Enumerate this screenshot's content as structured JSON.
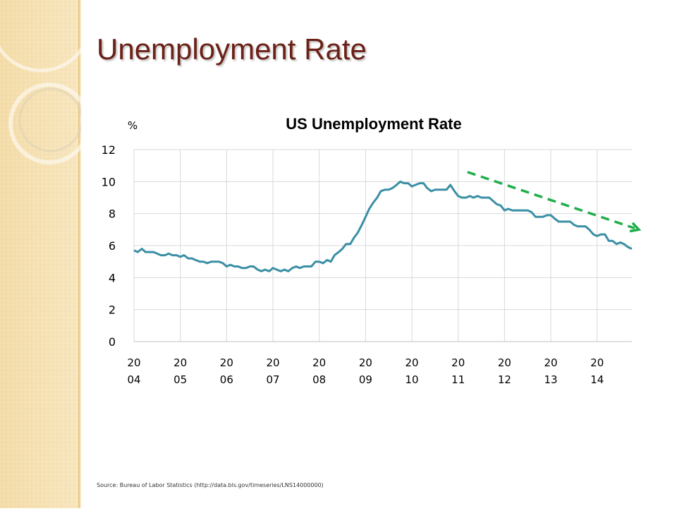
{
  "slide": {
    "title": "Unemployment Rate",
    "source": "Source: Bureau of Labor Statistics (http://data.bls.gov/timeseries/LNS14000000)"
  },
  "colors": {
    "title": "#6b2117",
    "line": "#3a8fa5",
    "trend": "#1fae4a",
    "grid": "#d9d9d9",
    "panel": "#f6e3b6"
  },
  "chart_data": {
    "type": "line",
    "title": "US Unemployment Rate",
    "ylabel": "%",
    "xlabel": "",
    "ylim": [
      0,
      12
    ],
    "y_ticks": [
      0,
      2,
      4,
      6,
      8,
      10,
      12
    ],
    "grid": "vertical and horizontal",
    "x_ticks": [
      {
        "year": 2004,
        "line1": "20",
        "line2": "04"
      },
      {
        "year": 2005,
        "line1": "20",
        "line2": "05"
      },
      {
        "year": 2006,
        "line1": "20",
        "line2": "06"
      },
      {
        "year": 2007,
        "line1": "20",
        "line2": "07"
      },
      {
        "year": 2008,
        "line1": "20",
        "line2": "08"
      },
      {
        "year": 2009,
        "line1": "20",
        "line2": "09"
      },
      {
        "year": 2010,
        "line1": "20",
        "line2": "10"
      },
      {
        "year": 2011,
        "line1": "20",
        "line2": "11"
      },
      {
        "year": 2012,
        "line1": "20",
        "line2": "12"
      },
      {
        "year": 2013,
        "line1": "20",
        "line2": "13"
      },
      {
        "year": 2014,
        "line1": "20",
        "line2": "14"
      }
    ],
    "x_range": [
      2004.0,
      2014.75
    ],
    "series": [
      {
        "values": [
          [
            2004.0,
            5.7
          ],
          [
            2004.08,
            5.6
          ],
          [
            2004.17,
            5.8
          ],
          [
            2004.25,
            5.6
          ],
          [
            2004.33,
            5.6
          ],
          [
            2004.42,
            5.6
          ],
          [
            2004.5,
            5.5
          ],
          [
            2004.58,
            5.4
          ],
          [
            2004.67,
            5.4
          ],
          [
            2004.75,
            5.5
          ],
          [
            2004.83,
            5.4
          ],
          [
            2004.92,
            5.4
          ],
          [
            2005.0,
            5.3
          ],
          [
            2005.08,
            5.4
          ],
          [
            2005.17,
            5.2
          ],
          [
            2005.25,
            5.2
          ],
          [
            2005.33,
            5.1
          ],
          [
            2005.42,
            5.0
          ],
          [
            2005.5,
            5.0
          ],
          [
            2005.58,
            4.9
          ],
          [
            2005.67,
            5.0
          ],
          [
            2005.75,
            5.0
          ],
          [
            2005.83,
            5.0
          ],
          [
            2005.92,
            4.9
          ],
          [
            2006.0,
            4.7
          ],
          [
            2006.08,
            4.8
          ],
          [
            2006.17,
            4.7
          ],
          [
            2006.25,
            4.7
          ],
          [
            2006.33,
            4.6
          ],
          [
            2006.42,
            4.6
          ],
          [
            2006.5,
            4.7
          ],
          [
            2006.58,
            4.7
          ],
          [
            2006.67,
            4.5
          ],
          [
            2006.75,
            4.4
          ],
          [
            2006.83,
            4.5
          ],
          [
            2006.92,
            4.4
          ],
          [
            2007.0,
            4.6
          ],
          [
            2007.08,
            4.5
          ],
          [
            2007.17,
            4.4
          ],
          [
            2007.25,
            4.5
          ],
          [
            2007.33,
            4.4
          ],
          [
            2007.42,
            4.6
          ],
          [
            2007.5,
            4.7
          ],
          [
            2007.58,
            4.6
          ],
          [
            2007.67,
            4.7
          ],
          [
            2007.75,
            4.7
          ],
          [
            2007.83,
            4.7
          ],
          [
            2007.92,
            5.0
          ],
          [
            2008.0,
            5.0
          ],
          [
            2008.08,
            4.9
          ],
          [
            2008.17,
            5.1
          ],
          [
            2008.25,
            5.0
          ],
          [
            2008.33,
            5.4
          ],
          [
            2008.42,
            5.6
          ],
          [
            2008.5,
            5.8
          ],
          [
            2008.58,
            6.1
          ],
          [
            2008.67,
            6.1
          ],
          [
            2008.75,
            6.5
          ],
          [
            2008.83,
            6.8
          ],
          [
            2008.92,
            7.3
          ],
          [
            2009.0,
            7.8
          ],
          [
            2009.08,
            8.3
          ],
          [
            2009.17,
            8.7
          ],
          [
            2009.25,
            9.0
          ],
          [
            2009.33,
            9.4
          ],
          [
            2009.42,
            9.5
          ],
          [
            2009.5,
            9.5
          ],
          [
            2009.58,
            9.6
          ],
          [
            2009.67,
            9.8
          ],
          [
            2009.75,
            10.0
          ],
          [
            2009.83,
            9.9
          ],
          [
            2009.92,
            9.9
          ],
          [
            2010.0,
            9.7
          ],
          [
            2010.08,
            9.8
          ],
          [
            2010.17,
            9.9
          ],
          [
            2010.25,
            9.9
          ],
          [
            2010.33,
            9.6
          ],
          [
            2010.42,
            9.4
          ],
          [
            2010.5,
            9.5
          ],
          [
            2010.58,
            9.5
          ],
          [
            2010.67,
            9.5
          ],
          [
            2010.75,
            9.5
          ],
          [
            2010.83,
            9.8
          ],
          [
            2010.92,
            9.4
          ],
          [
            2011.0,
            9.1
          ],
          [
            2011.08,
            9.0
          ],
          [
            2011.17,
            9.0
          ],
          [
            2011.25,
            9.1
          ],
          [
            2011.33,
            9.0
          ],
          [
            2011.42,
            9.1
          ],
          [
            2011.5,
            9.0
          ],
          [
            2011.58,
            9.0
          ],
          [
            2011.67,
            9.0
          ],
          [
            2011.75,
            8.8
          ],
          [
            2011.83,
            8.6
          ],
          [
            2011.92,
            8.5
          ],
          [
            2012.0,
            8.2
          ],
          [
            2012.08,
            8.3
          ],
          [
            2012.17,
            8.2
          ],
          [
            2012.25,
            8.2
          ],
          [
            2012.33,
            8.2
          ],
          [
            2012.42,
            8.2
          ],
          [
            2012.5,
            8.2
          ],
          [
            2012.58,
            8.1
          ],
          [
            2012.67,
            7.8
          ],
          [
            2012.75,
            7.8
          ],
          [
            2012.83,
            7.8
          ],
          [
            2012.92,
            7.9
          ],
          [
            2013.0,
            7.9
          ],
          [
            2013.08,
            7.7
          ],
          [
            2013.17,
            7.5
          ],
          [
            2013.25,
            7.5
          ],
          [
            2013.33,
            7.5
          ],
          [
            2013.42,
            7.5
          ],
          [
            2013.5,
            7.3
          ],
          [
            2013.58,
            7.2
          ],
          [
            2013.67,
            7.2
          ],
          [
            2013.75,
            7.2
          ],
          [
            2013.83,
            7.0
          ],
          [
            2013.92,
            6.7
          ],
          [
            2014.0,
            6.6
          ],
          [
            2014.08,
            6.7
          ],
          [
            2014.17,
            6.7
          ],
          [
            2014.25,
            6.3
          ],
          [
            2014.33,
            6.3
          ],
          [
            2014.42,
            6.1
          ],
          [
            2014.5,
            6.2
          ],
          [
            2014.58,
            6.1
          ],
          [
            2014.67,
            5.9
          ],
          [
            2014.75,
            5.8
          ]
        ]
      }
    ],
    "trend_arrow": {
      "from": [
        2011.2,
        10.6
      ],
      "to": [
        2014.9,
        7.0
      ],
      "style": "dashed",
      "direction": "downward"
    }
  }
}
